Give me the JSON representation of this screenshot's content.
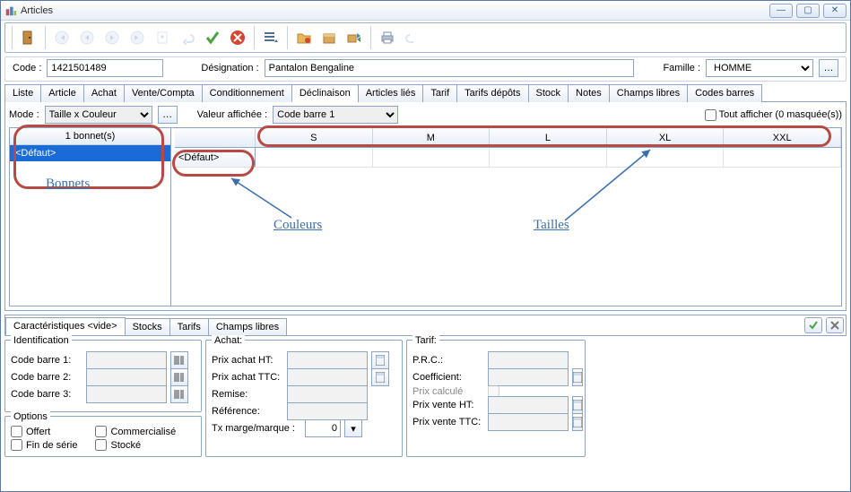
{
  "window": {
    "title": "Articles"
  },
  "info": {
    "code_label": "Code :",
    "code": "1421501489",
    "designation_label": "Désignation :",
    "designation": "Pantalon Bengaline",
    "famille_label": "Famille :",
    "famille": "HOMME"
  },
  "tabs": [
    "Liste",
    "Article",
    "Achat",
    "Vente/Compta",
    "Conditionnement",
    "Déclinaison",
    "Articles liés",
    "Tarif",
    "Tarifs dépôts",
    "Stock",
    "Notes",
    "Champs libres",
    "Codes barres"
  ],
  "active_tab_index": 5,
  "mode": {
    "label": "Mode :",
    "value": "Taille x Couleur",
    "valaff_label": "Valeur affichée :",
    "valaff": "Code barre 1",
    "toutaff": "Tout afficher (0 masquée(s))"
  },
  "left": {
    "header": "1 bonnet(s)",
    "rows": [
      "<Défaut>"
    ],
    "annotation": "Bonnets"
  },
  "grid": {
    "columns": [
      "S",
      "M",
      "L",
      "XL",
      "XXL"
    ],
    "first_col": "<Défaut>",
    "anno_couleurs": "Couleurs",
    "anno_tailles": "Tailles"
  },
  "lower_tabs": [
    "Caractéristiques <vide>",
    "Stocks",
    "Tarifs",
    "Champs libres"
  ],
  "details": {
    "identification": {
      "title": "Identification",
      "fields": [
        "Code barre 1:",
        "Code barre 2:",
        "Code barre 3:"
      ]
    },
    "options": {
      "title": "Options",
      "left": [
        "Offert",
        "Fin de série"
      ],
      "right": [
        "Commercialisé",
        "Stocké"
      ]
    },
    "achat": {
      "title": "Achat:",
      "fields": [
        "Prix achat HT:",
        "Prix achat TTC:",
        "Remise:",
        "Référence:",
        "Tx marge/marque :"
      ],
      "txmarge": "0"
    },
    "tarif": {
      "title": "Tarif:",
      "fields": [
        "P.R.C.:",
        "Coefficient:",
        "Prix calculé",
        "Prix vente HT:",
        "Prix vente TTC:"
      ]
    }
  },
  "colors": {
    "annotation_red": "#b74a44",
    "annotation_blue": "#3b6fae",
    "selection": "#1a6bd6"
  }
}
